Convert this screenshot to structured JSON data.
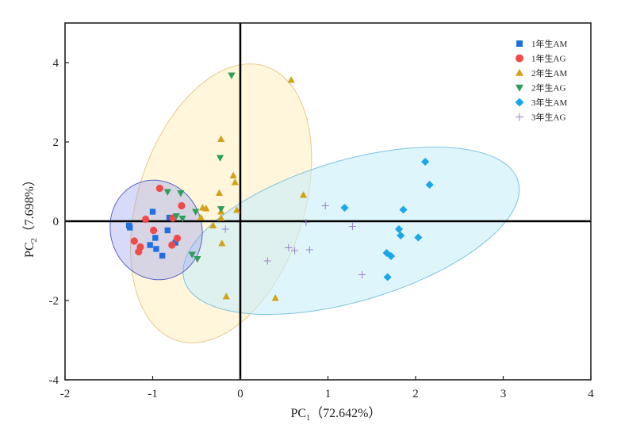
{
  "chart_data": {
    "type": "scatter",
    "title": "",
    "xlabel": {
      "main": "PC",
      "sub": "1",
      "suffix": "（72.642%）"
    },
    "ylabel": {
      "main": "PC",
      "sub": "2",
      "suffix": "（7.698%）"
    },
    "xlim": [
      -2,
      4
    ],
    "ylim": [
      -4,
      5
    ],
    "xticks": [
      -2,
      -1,
      0,
      1,
      2,
      3,
      4
    ],
    "yticks": [
      -4,
      -2,
      0,
      2,
      4
    ],
    "xtick_labels": [
      "-2",
      "-1",
      "0",
      "1",
      "2",
      "3",
      "4"
    ],
    "ytick_labels": [
      "-4",
      "-2",
      "0",
      "2",
      "4"
    ],
    "grid": false,
    "zero_lines": true,
    "legend_position": "top-right",
    "series": [
      {
        "name": "1年生AM",
        "marker": "square",
        "color": "#1f6fe0",
        "points": [
          [
            -1.0,
            0.24
          ],
          [
            -1.27,
            -0.11
          ],
          [
            -1.26,
            -0.16
          ],
          [
            -0.81,
            0.09
          ],
          [
            -0.83,
            -0.23
          ],
          [
            -0.97,
            -0.42
          ],
          [
            -1.03,
            -0.6
          ],
          [
            -0.96,
            -0.7
          ],
          [
            -0.89,
            -0.87
          ],
          [
            -0.74,
            -0.54
          ]
        ]
      },
      {
        "name": "1年生AG",
        "marker": "circle",
        "color": "#f04a4a",
        "points": [
          [
            -0.92,
            0.83
          ],
          [
            -0.67,
            0.39
          ],
          [
            -1.08,
            0.05
          ],
          [
            -0.77,
            0.08
          ],
          [
            -0.99,
            -0.23
          ],
          [
            -1.21,
            -0.5
          ],
          [
            -1.14,
            -0.65
          ],
          [
            -1.16,
            -0.77
          ],
          [
            -0.72,
            -0.43
          ],
          [
            -0.78,
            -0.6
          ]
        ]
      },
      {
        "name": "2年生AM",
        "marker": "triangle-up",
        "color": "#d4a017",
        "points": [
          [
            0.58,
            3.56
          ],
          [
            -0.22,
            2.07
          ],
          [
            -0.08,
            1.15
          ],
          [
            -0.06,
            0.98
          ],
          [
            -0.24,
            0.71
          ],
          [
            0.72,
            0.66
          ],
          [
            -0.43,
            0.34
          ],
          [
            -0.39,
            0.32
          ],
          [
            -0.22,
            0.24
          ],
          [
            -0.04,
            0.28
          ],
          [
            -0.45,
            0.09
          ],
          [
            -0.22,
            0.08
          ],
          [
            -0.31,
            -0.11
          ],
          [
            -0.21,
            -0.56
          ],
          [
            -0.16,
            -1.9
          ],
          [
            0.4,
            -1.94
          ]
        ]
      },
      {
        "name": "2年生AG",
        "marker": "triangle-down",
        "color": "#2e9e5b",
        "points": [
          [
            -0.1,
            3.68
          ],
          [
            -0.23,
            1.6
          ],
          [
            -0.83,
            0.74
          ],
          [
            -0.68,
            0.71
          ],
          [
            -0.51,
            0.24
          ],
          [
            -0.73,
            0.13
          ],
          [
            -0.66,
            0.07
          ],
          [
            -0.22,
            0.31
          ],
          [
            -0.55,
            -0.84
          ],
          [
            -0.49,
            -0.95
          ]
        ]
      },
      {
        "name": "3年生AM",
        "marker": "diamond",
        "color": "#1aa7ec",
        "points": [
          [
            2.11,
            1.5
          ],
          [
            2.16,
            0.92
          ],
          [
            1.19,
            0.34
          ],
          [
            1.86,
            0.29
          ],
          [
            1.81,
            -0.2
          ],
          [
            1.83,
            -0.36
          ],
          [
            2.03,
            -0.41
          ],
          [
            1.67,
            -0.8
          ],
          [
            1.72,
            -0.88
          ],
          [
            1.68,
            -1.41
          ]
        ]
      },
      {
        "name": "3年生AG",
        "marker": "plus",
        "color": "#9b7fc9",
        "points": [
          [
            0.97,
            0.39
          ],
          [
            0.75,
            -0.03
          ],
          [
            1.28,
            -0.13
          ],
          [
            -0.17,
            -0.2
          ],
          [
            0.55,
            -0.67
          ],
          [
            0.62,
            -0.74
          ],
          [
            0.79,
            -0.72
          ],
          [
            0.31,
            -1.0
          ],
          [
            1.39,
            -1.35
          ]
        ]
      }
    ],
    "ellipses": [
      {
        "name": "2年生-ellipse",
        "fill": "#fff5d6",
        "stroke": "#e8c98a",
        "opacity": 0.85,
        "center": [
          -0.22,
          0.45
        ],
        "axis_a": [
          0.26,
          3.51
        ],
        "axis_b": [
          1.0,
          0.25
        ]
      },
      {
        "name": "3年生-ellipse",
        "fill": "#c9eefa",
        "stroke": "#7cc2df",
        "opacity": 0.6,
        "center": [
          1.265,
          -0.24
        ],
        "axis_a": [
          1.865,
          0.58
        ],
        "axis_b": [
          0.45,
          2.03
        ]
      },
      {
        "name": "1年生-ellipse",
        "fill": "#9aa3ee",
        "stroke": "#5a63c9",
        "opacity": 0.4,
        "center": [
          -0.96,
          -0.22
        ],
        "axis_a": [
          0.52,
          0.12
        ],
        "axis_b": [
          -0.08,
          1.25
        ]
      }
    ]
  }
}
